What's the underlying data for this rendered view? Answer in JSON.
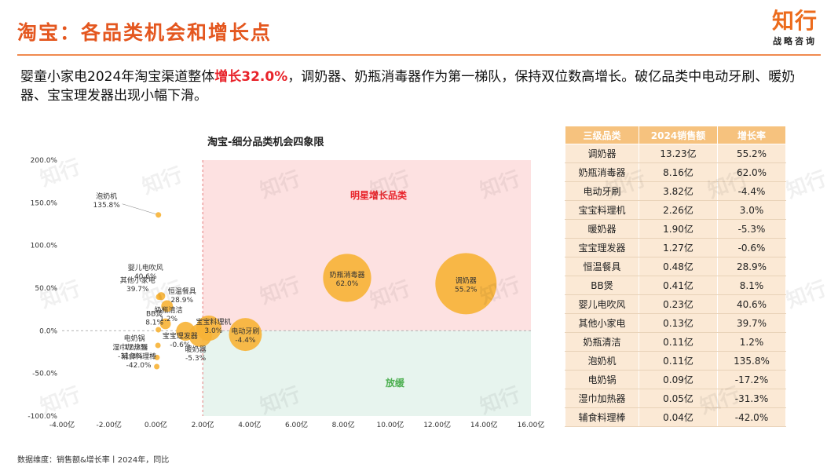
{
  "header": {
    "title": "淘宝：各品类机会和增长点"
  },
  "logo": {
    "main": "知行",
    "sub": "战略咨询"
  },
  "summary": {
    "pre": "婴童小家电2024年淘宝渠道整体",
    "highlight": "增长32.0%",
    "post": "，调奶器、奶瓶消毒器作为第一梯队，保持双位数高增长。破亿品类中电动牙刷、暖奶器、宝宝理发器出现小幅下滑。"
  },
  "footnote": "数据维度：销售额&增长率丨2024年，同比",
  "colors": {
    "accent": "#e4571f",
    "bubble": "#f7b335",
    "star_zone": "#fde1e1",
    "slow_zone": "#e7f4ee",
    "star_label": "#e8232a",
    "slow_label": "#4caf50"
  },
  "chart_data": {
    "type": "scatter",
    "title": "淘宝-细分品类机会四象限",
    "xlabel": "",
    "ylabel": "",
    "xlim": [
      -4,
      16
    ],
    "ylim": [
      -100,
      200
    ],
    "x_ticks": [
      "-4.00亿",
      "-2.00亿",
      "0.00亿",
      "2.00亿",
      "4.00亿",
      "6.00亿",
      "8.00亿",
      "10.00亿",
      "12.00亿",
      "14.00亿",
      "16.00亿"
    ],
    "y_ticks": [
      "200.0%",
      "150.0%",
      "100.0%",
      "50.0%",
      "0.0%",
      "-50.0%",
      "-100.0%"
    ],
    "quadrants": {
      "star": "明星增长品类",
      "slow": "放缓"
    },
    "points": [
      {
        "name": "调奶器",
        "x": 13.23,
        "y": 55.2,
        "label": "55.2%"
      },
      {
        "name": "奶瓶消毒器",
        "x": 8.16,
        "y": 62.0,
        "label": "62.0%"
      },
      {
        "name": "电动牙刷",
        "x": 3.82,
        "y": -4.4,
        "label": "-4.4%"
      },
      {
        "name": "宝宝料理机",
        "x": 2.26,
        "y": 3.0,
        "label": "3.0%"
      },
      {
        "name": "暖奶器",
        "x": 1.9,
        "y": -5.3,
        "label": "-5.3%"
      },
      {
        "name": "宝宝理发器",
        "x": 1.27,
        "y": -0.6,
        "label": "-0.6%"
      },
      {
        "name": "恒温餐具",
        "x": 0.48,
        "y": 28.9,
        "label": "28.9%"
      },
      {
        "name": "BB煲",
        "x": 0.41,
        "y": 8.1,
        "label": "8.1%"
      },
      {
        "name": "婴儿电吹风",
        "x": 0.23,
        "y": 40.6,
        "label": "40.6%"
      },
      {
        "name": "其他小家电",
        "x": 0.13,
        "y": 39.7,
        "label": "39.7%"
      },
      {
        "name": "奶瓶清洁",
        "x": 0.11,
        "y": 1.2,
        "label": "1.2%"
      },
      {
        "name": "泡奶机",
        "x": 0.11,
        "y": 135.8,
        "label": "135.8%"
      },
      {
        "name": "电奶锅",
        "x": 0.09,
        "y": -17.2,
        "label": "-17.2%"
      },
      {
        "name": "湿巾加热器",
        "x": 0.05,
        "y": -31.3,
        "label": "-31.3%"
      },
      {
        "name": "辅食料理棒",
        "x": 0.04,
        "y": -42.0,
        "label": "-42.0%"
      }
    ]
  },
  "table": {
    "headers": [
      "三级品类",
      "2024销售额",
      "增长率"
    ],
    "rows": [
      [
        "调奶器",
        "13.23亿",
        "55.2%"
      ],
      [
        "奶瓶消毒器",
        "8.16亿",
        "62.0%"
      ],
      [
        "电动牙刷",
        "3.82亿",
        "-4.4%"
      ],
      [
        "宝宝料理机",
        "2.26亿",
        "3.0%"
      ],
      [
        "暖奶器",
        "1.90亿",
        "-5.3%"
      ],
      [
        "宝宝理发器",
        "1.27亿",
        "-0.6%"
      ],
      [
        "恒温餐具",
        "0.48亿",
        "28.9%"
      ],
      [
        "BB煲",
        "0.41亿",
        "8.1%"
      ],
      [
        "婴儿电吹风",
        "0.23亿",
        "40.6%"
      ],
      [
        "其他小家电",
        "0.13亿",
        "39.7%"
      ],
      [
        "奶瓶清洁",
        "0.11亿",
        "1.2%"
      ],
      [
        "泡奶机",
        "0.11亿",
        "135.8%"
      ],
      [
        "电奶锅",
        "0.09亿",
        "-17.2%"
      ],
      [
        "湿巾加热器",
        "0.05亿",
        "-31.3%"
      ],
      [
        "辅食料理棒",
        "0.04亿",
        "-42.0%"
      ]
    ]
  }
}
